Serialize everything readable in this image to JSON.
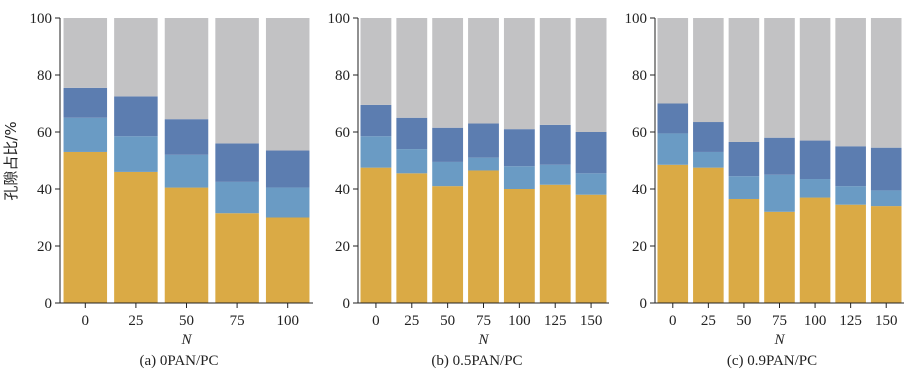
{
  "colors": {
    "pore_bottom": "#DAAA45",
    "pore_lower_mid": "#6A9BC4",
    "pore_upper_mid": "#5C7DB0",
    "pore_top": "#C2C2C4"
  },
  "chart_data": [
    {
      "type": "bar",
      "stacked": true,
      "caption": "(a) 0PAN/PC",
      "xlabel": "N",
      "ylabel": "孔隙占比/%",
      "ylim": [
        0,
        100
      ],
      "yticks": [
        0,
        20,
        40,
        60,
        80,
        100
      ],
      "categories": [
        "0",
        "25",
        "50",
        "75",
        "100"
      ],
      "series": [
        {
          "values": [
            53,
            46,
            40.5,
            31.5,
            30
          ]
        },
        {
          "values": [
            12,
            12.5,
            11.5,
            11,
            10.5
          ]
        },
        {
          "values": [
            10.5,
            14,
            12.5,
            13.5,
            13
          ]
        },
        {
          "values": [
            24.5,
            27.5,
            35.5,
            44,
            46.5
          ]
        }
      ]
    },
    {
      "type": "bar",
      "stacked": true,
      "caption": "(b) 0.5PAN/PC",
      "xlabel": "N",
      "ylim": [
        0,
        100
      ],
      "yticks": [
        0,
        20,
        40,
        60,
        80,
        100
      ],
      "categories": [
        "0",
        "25",
        "50",
        "75",
        "100",
        "125",
        "150"
      ],
      "series": [
        {
          "values": [
            47.5,
            45.5,
            41,
            46.5,
            40,
            41.5,
            38
          ]
        },
        {
          "values": [
            11,
            8.5,
            8.5,
            4.5,
            8,
            7,
            7.5
          ]
        },
        {
          "values": [
            11,
            11,
            12,
            12,
            13,
            14,
            14.5
          ]
        },
        {
          "values": [
            30.5,
            35,
            38.5,
            37,
            39,
            37.5,
            40
          ]
        }
      ]
    },
    {
      "type": "bar",
      "stacked": true,
      "caption": "(c) 0.9PAN/PC",
      "xlabel": "N",
      "ylim": [
        0,
        100
      ],
      "yticks": [
        0,
        20,
        40,
        60,
        80,
        100
      ],
      "categories": [
        "0",
        "25",
        "50",
        "75",
        "100",
        "125",
        "150"
      ],
      "series": [
        {
          "values": [
            48.5,
            47.5,
            36.5,
            32,
            37,
            34.5,
            34
          ]
        },
        {
          "values": [
            11,
            5.5,
            8,
            13,
            6.5,
            6.5,
            5.5
          ]
        },
        {
          "values": [
            10.5,
            10.5,
            12,
            13,
            13.5,
            14,
            15
          ]
        },
        {
          "values": [
            30,
            36.5,
            43.5,
            42,
            43,
            45,
            45.5
          ]
        }
      ]
    }
  ]
}
